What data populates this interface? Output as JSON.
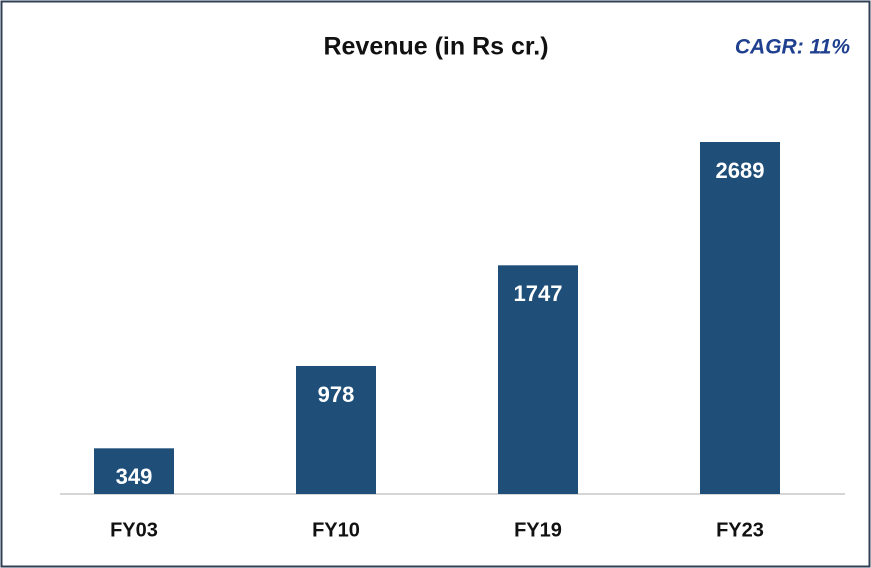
{
  "chart_data": {
    "type": "bar",
    "title": "Revenue (in Rs cr.)",
    "annotation": "CAGR: 11%",
    "categories": [
      "FY03",
      "FY10",
      "FY19",
      "FY23"
    ],
    "values": [
      349,
      978,
      1747,
      2689
    ],
    "color": "#1f4e79",
    "annotation_color": "#1f3f8f",
    "value_labels_inside": true
  }
}
